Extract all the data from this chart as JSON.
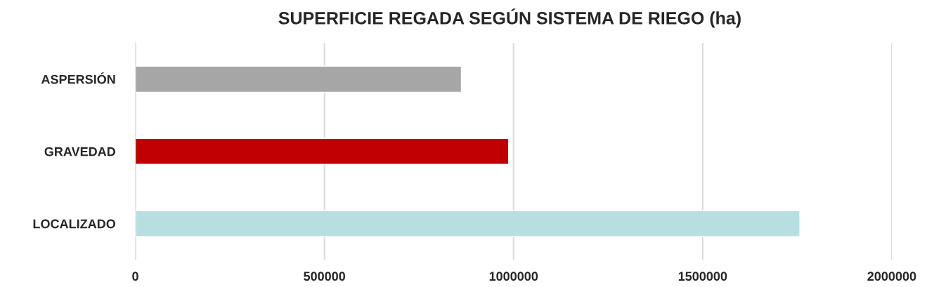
{
  "chart_data": {
    "type": "bar",
    "orientation": "horizontal",
    "title": "SUPERFICIE REGADA SEGÚN SISTEMA DE RIEGO (ha)",
    "categories": [
      "ASPERSIÓN",
      "GRAVEDAD",
      "LOCALIZADO"
    ],
    "values": [
      862000,
      987000,
      1757000
    ],
    "colors": [
      "#a6a6a6",
      "#c00000",
      "#b7dfe2"
    ],
    "xlim": [
      0,
      2000000
    ],
    "xticks": [
      0,
      500000,
      1000000,
      1500000,
      2000000
    ],
    "grid": "x",
    "legend": false
  }
}
